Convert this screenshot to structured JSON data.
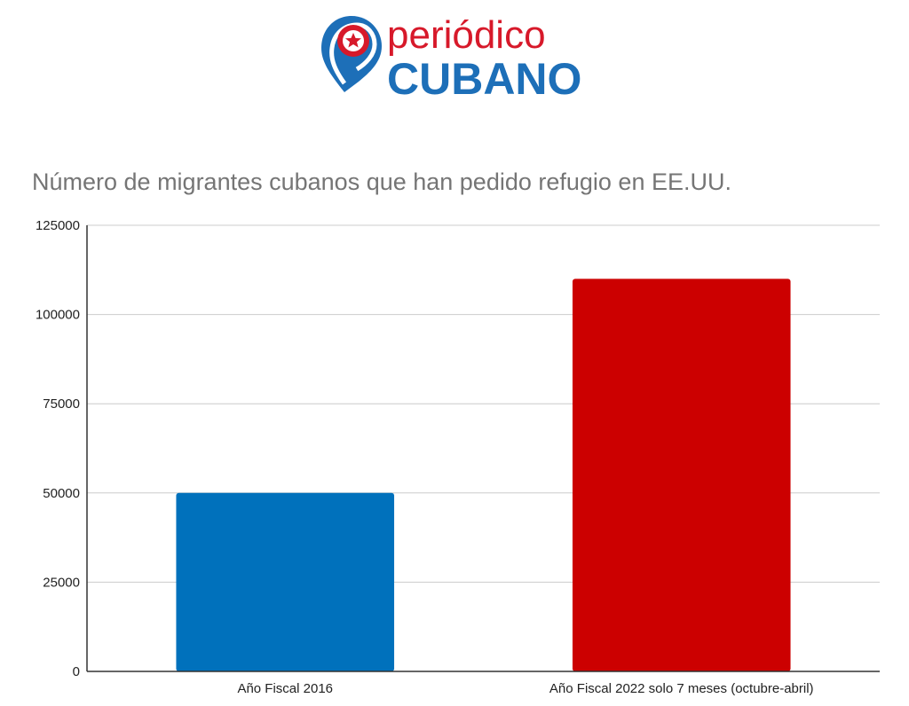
{
  "brand": {
    "line1": "periódico",
    "line2": "CUBANO",
    "colors": {
      "red": "#d7192a",
      "blue": "#1d6fb8"
    },
    "icon": "map-pin-star-icon"
  },
  "chart_data": {
    "type": "bar",
    "title": "Número de migrantes cubanos que han pedido refugio en EE.UU.",
    "categories": [
      "Año Fiscal 2016",
      "Año Fiscal 2022 solo 7 meses (octubre-abril)"
    ],
    "values": [
      50000,
      110000
    ],
    "bar_colors": [
      "#0071bc",
      "#cc0000"
    ],
    "xlabel": "",
    "ylabel": "",
    "ylim": [
      0,
      125000
    ],
    "yticks": [
      0,
      25000,
      50000,
      75000,
      100000,
      125000
    ],
    "grid": true,
    "legend": "none"
  }
}
